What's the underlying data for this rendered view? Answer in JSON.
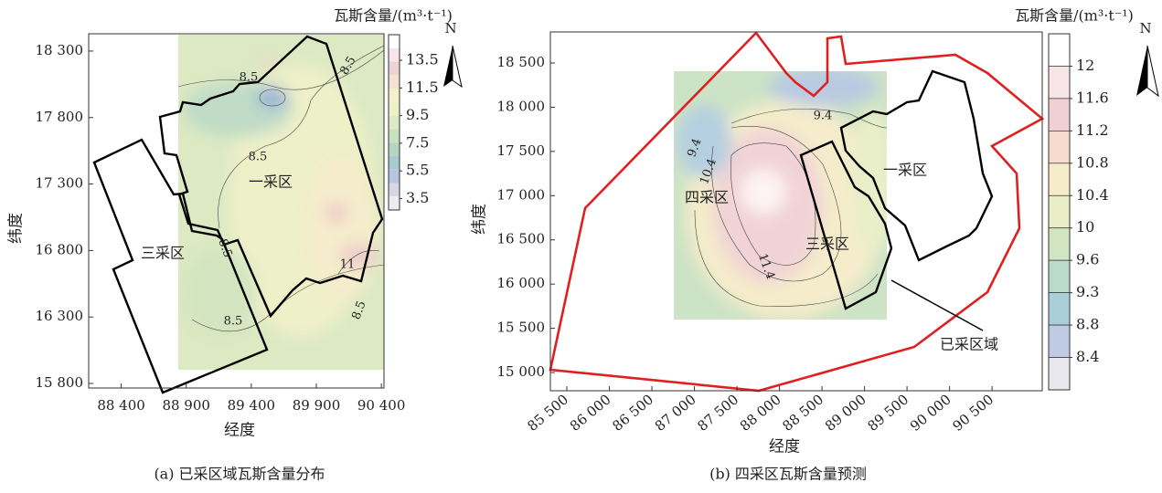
{
  "chart_data": [
    {
      "type": "contour",
      "title": "瓦斯含量/(m³·t⁻¹)",
      "x_label": "经度",
      "y_label": "纬度",
      "north": "N",
      "caption": "(a) 已采区域瓦斯含量分布",
      "xlim": [
        88150,
        90420
      ],
      "xticks": [
        {
          "value": 88400,
          "label": "88 400"
        },
        {
          "value": 88900,
          "label": "88 900"
        },
        {
          "value": 89400,
          "label": "89 400"
        },
        {
          "value": 89900,
          "label": "89 900"
        },
        {
          "value": 90400,
          "label": "90 400"
        }
      ],
      "ylim": [
        15766,
        18430
      ],
      "yticks": [
        {
          "value": 15800,
          "label": "15 800"
        },
        {
          "value": 16300,
          "label": "16 300"
        },
        {
          "value": 16800,
          "label": "16 800"
        },
        {
          "value": 17300,
          "label": "17 300"
        },
        {
          "value": 17800,
          "label": "17 800"
        },
        {
          "value": 18300,
          "label": "18 300"
        }
      ],
      "colorbar_ticks": [
        13.5,
        11.5,
        9.5,
        7.5,
        5.5,
        3.5
      ],
      "colorbar_colors": [
        "#ffffff",
        "#f6e6ea",
        "#efd2d8",
        "#f3e2d4",
        "#f5edcc",
        "#eef0c8",
        "#dfeac4",
        "#c9e0bf",
        "#b5d5c3",
        "#a7cbd3",
        "#b7c5e0",
        "#d6d6e6",
        "#ececf0"
      ],
      "contour_labels": [
        8.5,
        8.5,
        8.5,
        8.5,
        8.5,
        8.5,
        11
      ],
      "regions": [
        "一采区",
        "三采区"
      ]
    },
    {
      "type": "contour",
      "title": "瓦斯含量/(m³·t⁻¹)",
      "x_label": "经度",
      "y_label": "纬度",
      "north": "N",
      "caption": "(b) 四采区瓦斯含量预测",
      "xlim": [
        85306,
        91090
      ],
      "xticks": [
        {
          "value": 85500,
          "label": "85 500"
        },
        {
          "value": 86000,
          "label": "86 000"
        },
        {
          "value": 86500,
          "label": "86 500"
        },
        {
          "value": 87000,
          "label": "87 000"
        },
        {
          "value": 87500,
          "label": "87 500"
        },
        {
          "value": 88000,
          "label": "88 000"
        },
        {
          "value": 88500,
          "label": "88 500"
        },
        {
          "value": 89000,
          "label": "89 000"
        },
        {
          "value": 89500,
          "label": "89 500"
        },
        {
          "value": 90000,
          "label": "90 000"
        },
        {
          "value": 90500,
          "label": "90 500"
        }
      ],
      "ylim": [
        14794,
        18851
      ],
      "yticks": [
        {
          "value": 15000,
          "label": "15 000"
        },
        {
          "value": 15500,
          "label": "15 500"
        },
        {
          "value": 16000,
          "label": "16 000"
        },
        {
          "value": 16500,
          "label": "16 500"
        },
        {
          "value": 17000,
          "label": "17 000"
        },
        {
          "value": 17500,
          "label": "17 500"
        },
        {
          "value": 18000,
          "label": "18 000"
        },
        {
          "value": 18500,
          "label": "18 500"
        }
      ],
      "colorbar_ticks": [
        12,
        11.6,
        11.2,
        10.8,
        10.4,
        10,
        9.6,
        9.3,
        8.8,
        8.4
      ],
      "colorbar_colors": [
        "#ffffff",
        "#f7e4e6",
        "#f1d0d3",
        "#f5dccf",
        "#f6ecc9",
        "#e9eec6",
        "#d1e5c3",
        "#bbdac8",
        "#a9cfd8",
        "#bfcbe4",
        "#e8e8ee"
      ],
      "contour_labels": [
        9.4,
        9.4,
        10.4,
        11.4
      ],
      "regions": [
        "四采区",
        "三采区",
        "一采区",
        "已采区域"
      ]
    }
  ]
}
